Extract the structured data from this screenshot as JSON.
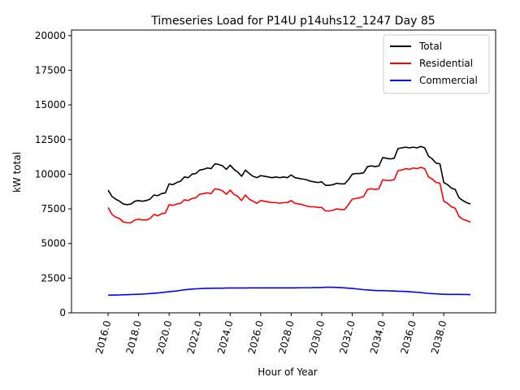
{
  "chart_data": {
    "type": "line",
    "title": "Timeseries Load for P14U p14uhs12_1247  Day 85",
    "xlabel": "Hour of Year",
    "ylabel": "kW total",
    "xlim": [
      2013.6,
      2041.4
    ],
    "ylim": [
      0,
      20400
    ],
    "xticks": [
      2016,
      2018,
      2020,
      2022,
      2024,
      2026,
      2028,
      2030,
      2032,
      2034,
      2036,
      2038
    ],
    "xtick_labels": [
      "2016.0",
      "2018.0",
      "2020.0",
      "2022.0",
      "2024.0",
      "2026.0",
      "2028.0",
      "2030.0",
      "2032.0",
      "2034.0",
      "2036.0",
      "2038.0"
    ],
    "yticks": [
      0,
      2500,
      5000,
      7500,
      10000,
      12500,
      15000,
      17500,
      20000
    ],
    "ytick_labels": [
      "0",
      "2500",
      "5000",
      "7500",
      "10000",
      "12500",
      "15000",
      "17500",
      "20000"
    ],
    "legend_position": "top-right",
    "x": [
      2016.0,
      2016.25,
      2016.5,
      2016.75,
      2017.0,
      2017.25,
      2017.5,
      2017.75,
      2018.0,
      2018.25,
      2018.5,
      2018.75,
      2019.0,
      2019.25,
      2019.5,
      2019.75,
      2020.0,
      2020.25,
      2020.5,
      2020.75,
      2021.0,
      2021.25,
      2021.5,
      2021.75,
      2022.0,
      2022.25,
      2022.5,
      2022.75,
      2023.0,
      2023.25,
      2023.5,
      2023.75,
      2024.0,
      2024.25,
      2024.5,
      2024.75,
      2025.0,
      2025.25,
      2025.5,
      2025.75,
      2026.0,
      2026.25,
      2026.5,
      2026.75,
      2027.0,
      2027.25,
      2027.5,
      2027.75,
      2028.0,
      2028.25,
      2028.5,
      2028.75,
      2029.0,
      2029.25,
      2029.5,
      2029.75,
      2030.0,
      2030.25,
      2030.5,
      2030.75,
      2031.0,
      2031.25,
      2031.5,
      2031.75,
      2032.0,
      2032.25,
      2032.5,
      2032.75,
      2033.0,
      2033.25,
      2033.5,
      2033.75,
      2034.0,
      2034.25,
      2034.5,
      2034.75,
      2035.0,
      2035.25,
      2035.5,
      2035.75,
      2036.0,
      2036.25,
      2036.5,
      2036.75,
      2037.0,
      2037.25,
      2037.5,
      2037.75,
      2038.0,
      2038.25,
      2038.5,
      2038.75,
      2039.0,
      2039.25,
      2039.5,
      2039.75
    ],
    "series": [
      {
        "name": "Total",
        "color": "#000000",
        "values": [
          8850,
          8400,
          8200,
          8050,
          7850,
          7800,
          7850,
          8050,
          8100,
          8050,
          8100,
          8200,
          8500,
          8450,
          8600,
          8650,
          9300,
          9250,
          9400,
          9500,
          9800,
          9750,
          10000,
          10050,
          10300,
          10350,
          10450,
          10400,
          10750,
          10700,
          10600,
          10350,
          10650,
          10350,
          10150,
          9850,
          10300,
          10050,
          9850,
          9750,
          9900,
          9850,
          9800,
          9750,
          9800,
          9750,
          9800,
          9750,
          9950,
          9750,
          9700,
          9650,
          9600,
          9500,
          9450,
          9400,
          9450,
          9200,
          9200,
          9250,
          9350,
          9300,
          9300,
          9600,
          10000,
          10050,
          10050,
          10100,
          10550,
          10600,
          10550,
          10600,
          11200,
          11150,
          11100,
          11150,
          11850,
          11900,
          11950,
          11900,
          11950,
          11900,
          12000,
          11900,
          11300,
          11100,
          10800,
          10750,
          9400,
          9250,
          9000,
          8900,
          8300,
          8100,
          7950,
          7850
        ]
      },
      {
        "name": "Residential",
        "color": "#ff0000",
        "values": [
          7600,
          7100,
          6900,
          6800,
          6550,
          6500,
          6500,
          6700,
          6750,
          6700,
          6700,
          6800,
          7100,
          7000,
          7150,
          7200,
          7800,
          7750,
          7850,
          7900,
          8150,
          8100,
          8250,
          8300,
          8550,
          8600,
          8650,
          8600,
          8950,
          8900,
          8800,
          8550,
          8850,
          8550,
          8400,
          8100,
          8500,
          8200,
          8050,
          7900,
          8100,
          8050,
          8000,
          7950,
          7950,
          7900,
          7950,
          7950,
          8100,
          7900,
          7850,
          7800,
          7700,
          7650,
          7650,
          7600,
          7600,
          7350,
          7350,
          7400,
          7500,
          7450,
          7450,
          7800,
          8200,
          8250,
          8300,
          8400,
          8900,
          8950,
          8900,
          8950,
          9600,
          9550,
          9550,
          9600,
          10250,
          10300,
          10400,
          10350,
          10450,
          10400,
          10500,
          10400,
          9800,
          9650,
          9400,
          9350,
          8050,
          7900,
          7650,
          7550,
          6950,
          6750,
          6650,
          6550
        ]
      },
      {
        "name": "Commercial",
        "color": "#0000ff",
        "values": [
          1270,
          1280,
          1280,
          1290,
          1300,
          1310,
          1320,
          1330,
          1340,
          1350,
          1370,
          1390,
          1410,
          1430,
          1460,
          1490,
          1520,
          1550,
          1580,
          1620,
          1660,
          1690,
          1710,
          1730,
          1740,
          1760,
          1770,
          1770,
          1780,
          1780,
          1780,
          1790,
          1790,
          1790,
          1790,
          1790,
          1790,
          1800,
          1800,
          1800,
          1800,
          1800,
          1800,
          1800,
          1800,
          1800,
          1800,
          1800,
          1800,
          1800,
          1810,
          1810,
          1810,
          1810,
          1820,
          1820,
          1830,
          1840,
          1840,
          1840,
          1830,
          1820,
          1800,
          1780,
          1760,
          1730,
          1700,
          1670,
          1650,
          1630,
          1610,
          1600,
          1600,
          1590,
          1580,
          1570,
          1560,
          1550,
          1540,
          1520,
          1500,
          1480,
          1460,
          1430,
          1400,
          1380,
          1370,
          1350,
          1340,
          1330,
          1330,
          1330,
          1330,
          1320,
          1320,
          1310
        ]
      }
    ]
  }
}
